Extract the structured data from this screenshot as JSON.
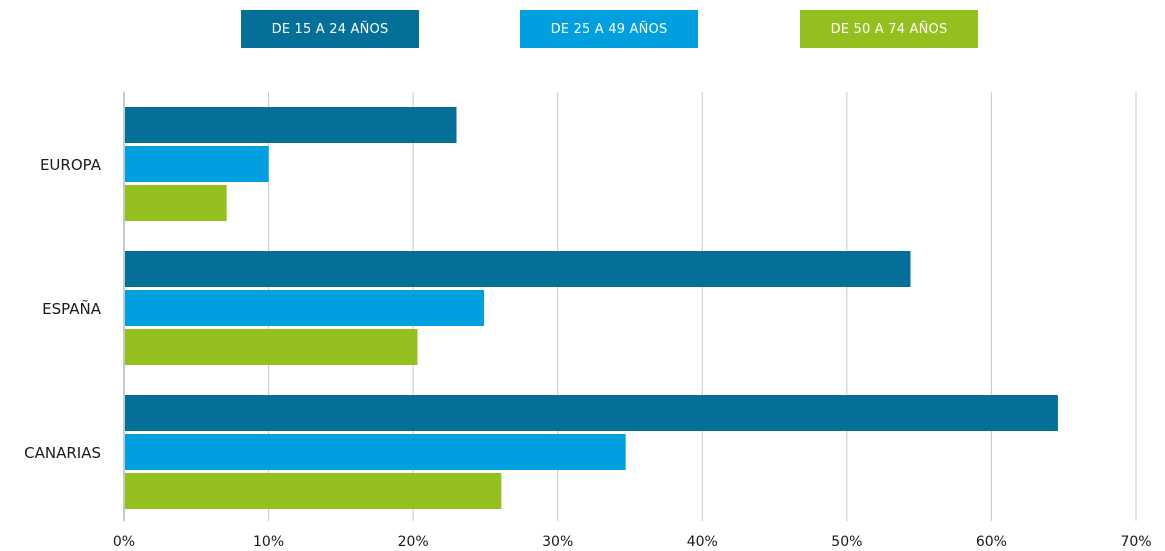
{
  "chart_data": {
    "type": "bar",
    "orientation": "horizontal",
    "categories": [
      "EUROPA",
      "ESPAÑA",
      "CANARIAS"
    ],
    "series": [
      {
        "name": "DE 15 A 24 AÑOS",
        "color": "#046f98",
        "values": [
          23.0,
          54.4,
          64.6
        ]
      },
      {
        "name": "DE 25 A 49 AÑOS",
        "color": "#00a0e0",
        "values": [
          10.0,
          24.9,
          34.7
        ]
      },
      {
        "name": "DE 50 A 74 AÑOS",
        "color": "#94c01f",
        "values": [
          7.1,
          20.3,
          26.1
        ]
      }
    ],
    "xlim": [
      0,
      70
    ],
    "xticks": [
      0,
      10,
      20,
      30,
      40,
      50,
      60,
      70
    ],
    "tick_suffix": "%",
    "grid": true,
    "legend_position": "top"
  }
}
